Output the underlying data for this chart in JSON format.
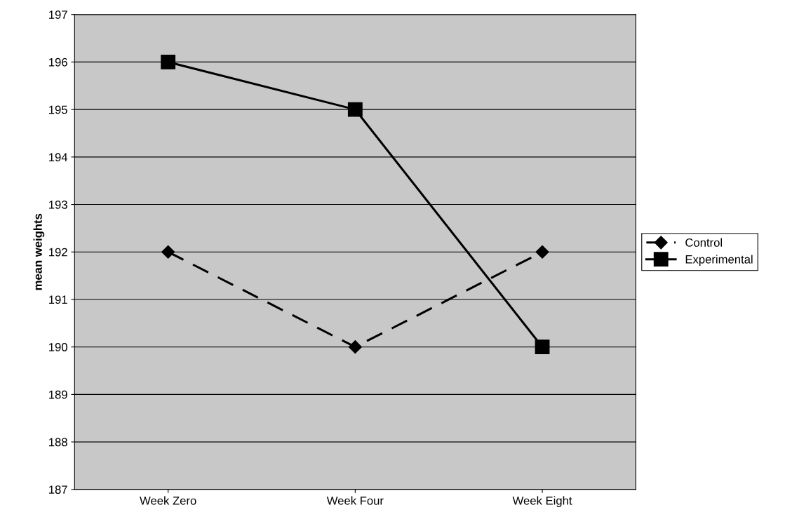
{
  "chart_data": {
    "type": "line",
    "ylabel": "mean weights",
    "categories": [
      "Week Zero",
      "Week Four",
      "Week Eight"
    ],
    "series": [
      {
        "name": "Control",
        "color": "#000000",
        "values": [
          192,
          190,
          192
        ],
        "marker": "diamond",
        "line_style": "dashed"
      },
      {
        "name": "Experimental",
        "color": "#000000",
        "values": [
          196,
          195,
          190
        ],
        "marker": "square",
        "line_style": "solid"
      }
    ],
    "ylim": [
      187,
      197
    ],
    "yticks": [
      187,
      188,
      189,
      190,
      191,
      192,
      193,
      194,
      195,
      196,
      197
    ],
    "grid": "y",
    "legend": "right"
  }
}
